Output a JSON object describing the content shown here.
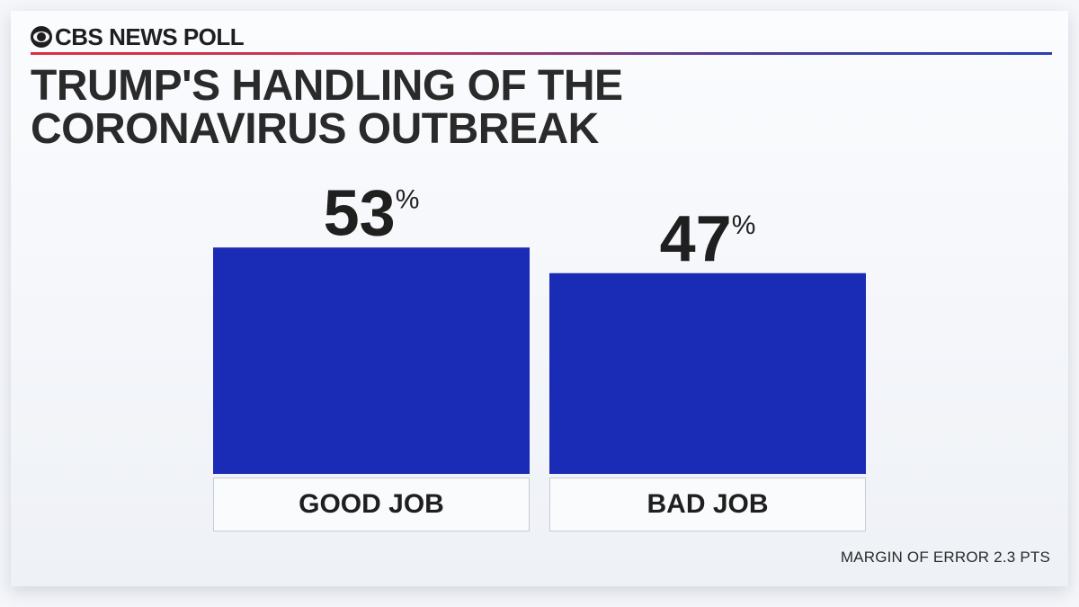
{
  "header": {
    "brand": "CBS NEWS POLL",
    "title_lines": [
      "TRUMP'S HANDLING OF THE",
      "CORONAVIRUS OUTBREAK"
    ]
  },
  "footnote": "MARGIN OF ERROR 2.3 PTS",
  "colors": {
    "bar": "#1a2bb5",
    "text": "#1f1f1f",
    "rule_left": "#d9303b",
    "rule_right": "#2a3fb0"
  },
  "chart_data": {
    "type": "bar",
    "title": "TRUMP'S HANDLING OF THE CORONAVIRUS OUTBREAK",
    "categories": [
      "GOOD JOB",
      "BAD JOB"
    ],
    "values": [
      53,
      47
    ],
    "value_labels": [
      "53",
      "47"
    ],
    "unit": "%",
    "xlabel": "",
    "ylabel": "",
    "grid": false,
    "legend": "none"
  }
}
